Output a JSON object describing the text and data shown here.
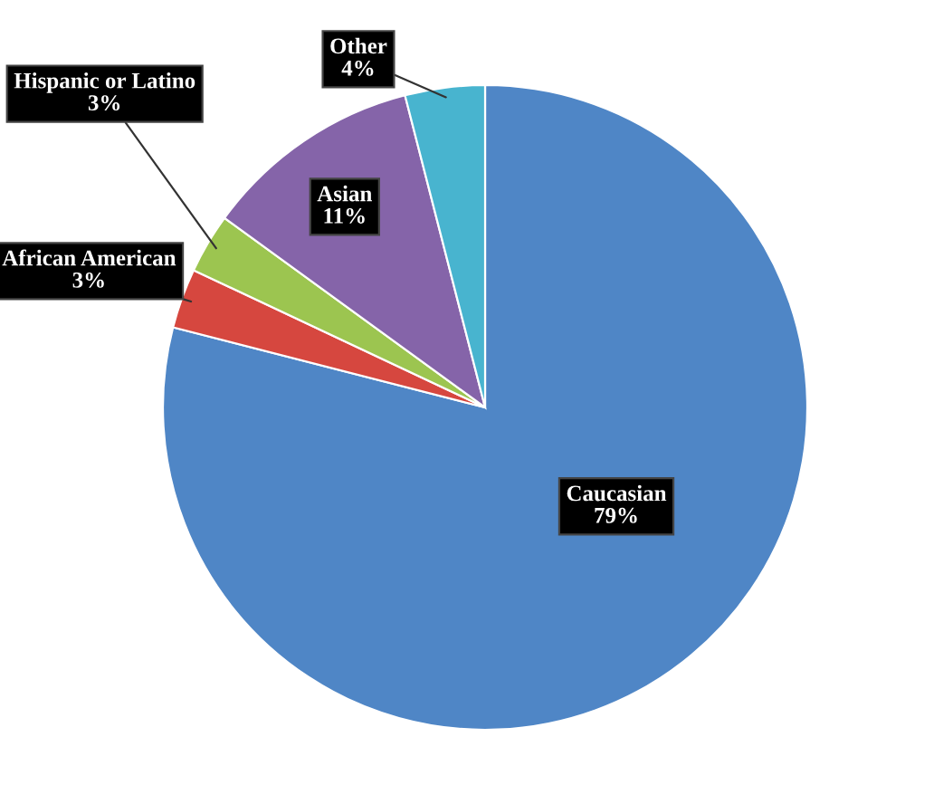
{
  "chart_data": {
    "type": "pie",
    "categories": [
      "Caucasian",
      "African American",
      "Hispanic or Latino",
      "Asian",
      "Other"
    ],
    "values": [
      79,
      3,
      3,
      11,
      4
    ],
    "value_labels": [
      "79%",
      "3%",
      "3%",
      "11%",
      "4%"
    ],
    "colors": [
      "#4f86c6",
      "#d6473f",
      "#9cc550",
      "#8564a9",
      "#48b4cf"
    ],
    "legend": false
  }
}
